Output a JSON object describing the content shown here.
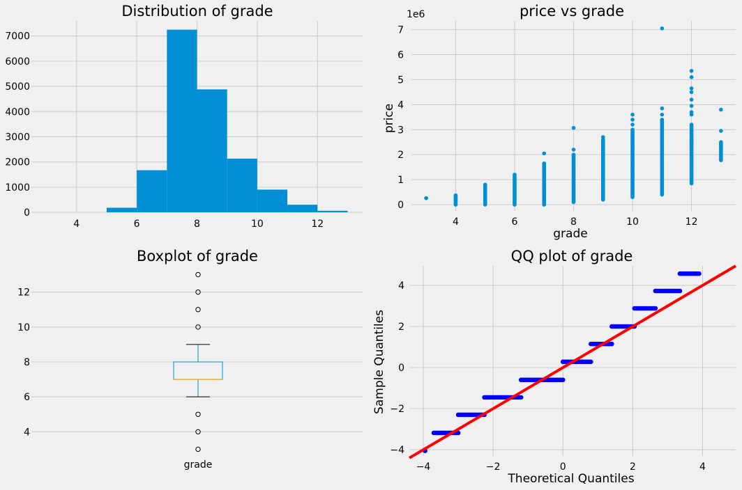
{
  "chart_data": [
    {
      "type": "bar",
      "title": "Distribution of grade",
      "xlabel": "",
      "ylabel": "",
      "xlim": [
        2.5,
        13.5
      ],
      "ylim": [
        0,
        7600
      ],
      "xticks": [
        4,
        6,
        8,
        10,
        12
      ],
      "yticks": [
        0,
        1000,
        2000,
        3000,
        4000,
        5000,
        6000,
        7000
      ],
      "bins": [
        [
          5,
          6,
          180
        ],
        [
          6,
          7,
          1670
        ],
        [
          7,
          8,
          7250
        ],
        [
          8,
          9,
          4880
        ],
        [
          9,
          10,
          2130
        ],
        [
          10,
          11,
          900
        ],
        [
          11,
          12,
          300
        ],
        [
          12,
          13,
          60
        ]
      ],
      "color": "#008fd5"
    },
    {
      "type": "scatter",
      "title": "price vs grade",
      "xlabel": "grade",
      "ylabel": "price",
      "y_offset_label": "1e6",
      "xlim": [
        2.5,
        13.5
      ],
      "ylim": [
        -0.25,
        7.35
      ],
      "xticks": [
        4,
        6,
        8,
        10,
        12
      ],
      "yticks": [
        0,
        1,
        2,
        3,
        4,
        5,
        6,
        7
      ],
      "ranges": [
        [
          3,
          0.26,
          0.26
        ],
        [
          4,
          0.0,
          0.37
        ],
        [
          5,
          0.0,
          0.78
        ],
        [
          6,
          0.0,
          1.15
        ],
        [
          7,
          0.0,
          1.65
        ],
        [
          8,
          0.1,
          2.0
        ],
        [
          9,
          0.2,
          2.6
        ],
        [
          10,
          0.3,
          3.0
        ],
        [
          11,
          0.4,
          3.4
        ],
        [
          12,
          0.85,
          3.2
        ],
        [
          13,
          1.78,
          2.5
        ]
      ],
      "outliers": [
        [
          3,
          0.26
        ],
        [
          4,
          0.37
        ],
        [
          5,
          0.8
        ],
        [
          6,
          1.2
        ],
        [
          7,
          2.05
        ],
        [
          7,
          1.64
        ],
        [
          8,
          2.2
        ],
        [
          8,
          3.07
        ],
        [
          9,
          2.7
        ],
        [
          10,
          3.2
        ],
        [
          10,
          3.4
        ],
        [
          10,
          3.6
        ],
        [
          11,
          7.05
        ],
        [
          11,
          3.6
        ],
        [
          11,
          3.85
        ],
        [
          12,
          3.6
        ],
        [
          12,
          3.7
        ],
        [
          12,
          3.95
        ],
        [
          12,
          4.2
        ],
        [
          12,
          4.5
        ],
        [
          12,
          4.65
        ],
        [
          12,
          5.1
        ],
        [
          12,
          5.35
        ],
        [
          12,
          2.5
        ],
        [
          12,
          2.3
        ],
        [
          13,
          3.8
        ],
        [
          13,
          2.95
        ],
        [
          13,
          2.4
        ],
        [
          13,
          1.78
        ]
      ],
      "color": "#008fd5"
    },
    {
      "type": "box",
      "title": "Boxplot of grade",
      "category": "grade",
      "ylim": [
        2.5,
        13.5
      ],
      "yticks": [
        4,
        6,
        8,
        10,
        12
      ],
      "q1": 7,
      "median": 7,
      "q3": 8,
      "whisker_low": 6,
      "whisker_high": 9,
      "fliers": [
        3,
        4,
        5,
        10,
        11,
        12,
        13
      ],
      "box_color": "#008fd5",
      "median_color": "#e5ae38"
    },
    {
      "type": "scatter",
      "title": "QQ plot of grade",
      "xlabel": "Theoretical Quantiles",
      "ylabel": "Sample Quantiles",
      "xlim": [
        -4.4,
        4.95
      ],
      "ylim": [
        -4.3,
        4.95
      ],
      "xticks": [
        -4,
        -2,
        0,
        2,
        4
      ],
      "yticks": [
        -4,
        -2,
        0,
        2,
        4
      ],
      "steps": [
        [
          -3.95,
          -3.95,
          -4.05
        ],
        [
          -3.7,
          -3.0,
          -3.18
        ],
        [
          -3.0,
          -2.25,
          -2.3
        ],
        [
          -2.25,
          -1.2,
          -1.45
        ],
        [
          -1.2,
          0.0,
          -0.6
        ],
        [
          0.0,
          0.8,
          0.28
        ],
        [
          0.8,
          1.4,
          1.15
        ],
        [
          1.4,
          2.05,
          2.0
        ],
        [
          2.05,
          2.65,
          2.88
        ],
        [
          2.65,
          3.35,
          3.73
        ],
        [
          3.35,
          3.9,
          4.57
        ]
      ],
      "line": {
        "from": [
          -4.4,
          -4.4
        ],
        "to": [
          4.95,
          4.95
        ],
        "color": "#ff0000"
      },
      "point_color": "#0000ff"
    }
  ]
}
